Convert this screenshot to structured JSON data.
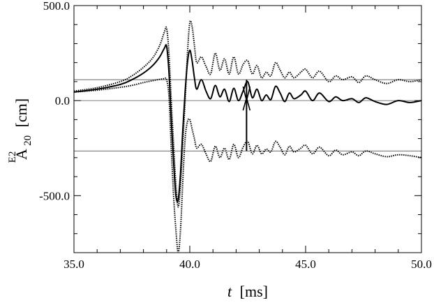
{
  "chart_data": {
    "type": "line",
    "title": "",
    "xlabel": {
      "symbol": "t",
      "unit": "[ms]"
    },
    "ylabel": {
      "base": "A",
      "superscript": "E2",
      "subscript": "20",
      "unit": "[cm]"
    },
    "xlim": [
      35.0,
      50.0
    ],
    "ylim": [
      -800,
      500
    ],
    "x_ticks": [
      {
        "value": 35.0,
        "label": "35.0"
      },
      {
        "value": 40.0,
        "label": "40.0"
      },
      {
        "value": 45.0,
        "label": "45.0"
      },
      {
        "value": 50.0,
        "label": "50.0"
      }
    ],
    "y_ticks": [
      {
        "value": 500,
        "label": "500.0"
      },
      {
        "value": 0,
        "label": "0.0"
      },
      {
        "value": -500,
        "label": "-500.0"
      }
    ],
    "grid": false,
    "reference_lines_y": [
      110,
      0,
      -265
    ],
    "error_bar": {
      "x": 42.45,
      "low": -265,
      "high": 110,
      "center": 0
    },
    "series": [
      {
        "style": "solid",
        "x": [
          35.0,
          36.0,
          37.0,
          37.5,
          38.0,
          38.4,
          38.7,
          38.9,
          39.0,
          39.1,
          39.2,
          39.3,
          39.4,
          39.5,
          39.6,
          39.7,
          39.8,
          39.9,
          40.0,
          40.1,
          40.2,
          40.3,
          40.5,
          40.7,
          40.9,
          41.1,
          41.3,
          41.5,
          41.7,
          41.9,
          42.1,
          42.3,
          42.5,
          42.7,
          42.9,
          43.1,
          43.3,
          43.5,
          43.7,
          43.9,
          44.1,
          44.3,
          44.5,
          44.8,
          45.0,
          45.3,
          45.6,
          46.0,
          46.3,
          46.6,
          47.0,
          47.3,
          47.6,
          48.0,
          48.5,
          49.0,
          49.5,
          50.0
        ],
        "y": [
          45,
          60,
          85,
          110,
          145,
          185,
          230,
          275,
          285,
          150,
          -100,
          -320,
          -500,
          -520,
          -380,
          -150,
          50,
          200,
          265,
          210,
          120,
          60,
          110,
          50,
          10,
          80,
          20,
          60,
          -5,
          65,
          0,
          50,
          100,
          15,
          60,
          0,
          30,
          5,
          75,
          40,
          -5,
          40,
          10,
          30,
          50,
          0,
          40,
          -5,
          20,
          0,
          10,
          -10,
          15,
          -5,
          -20,
          0,
          -10,
          0
        ]
      },
      {
        "style": "dotted",
        "x": [
          35.0,
          36.0,
          37.0,
          37.5,
          38.0,
          38.4,
          38.7,
          38.9,
          39.0,
          39.1,
          39.2,
          39.3,
          39.4,
          39.5,
          39.6,
          39.7,
          39.8,
          39.9,
          40.0,
          40.1,
          40.2,
          40.3,
          40.5,
          40.7,
          40.9,
          41.1,
          41.3,
          41.5,
          41.7,
          41.9,
          42.1,
          42.3,
          42.5,
          42.7,
          42.9,
          43.1,
          43.3,
          43.5,
          43.7,
          43.9,
          44.1,
          44.3,
          44.5,
          44.8,
          45.0,
          45.3,
          45.6,
          46.0,
          46.3,
          46.6,
          47.0,
          47.3,
          47.6,
          48.0,
          48.5,
          49.0,
          49.5,
          50.0
        ],
        "y": [
          50,
          68,
          100,
          130,
          175,
          225,
          290,
          360,
          380,
          250,
          0,
          -230,
          -440,
          -560,
          -440,
          -220,
          0,
          250,
          410,
          390,
          290,
          200,
          230,
          180,
          140,
          250,
          160,
          220,
          140,
          230,
          140,
          190,
          210,
          140,
          185,
          120,
          150,
          130,
          200,
          160,
          120,
          150,
          120,
          150,
          165,
          120,
          155,
          100,
          130,
          110,
          125,
          95,
          130,
          110,
          90,
          110,
          100,
          110
        ]
      },
      {
        "style": "dotted",
        "x": [
          35.0,
          36.0,
          37.0,
          37.5,
          38.0,
          38.4,
          38.7,
          38.9,
          39.0,
          39.1,
          39.2,
          39.3,
          39.4,
          39.5,
          39.6,
          39.7,
          39.8,
          39.9,
          40.0,
          40.1,
          40.2,
          40.3,
          40.5,
          40.7,
          40.9,
          41.1,
          41.3,
          41.5,
          41.7,
          41.9,
          42.1,
          42.3,
          42.5,
          42.7,
          42.9,
          43.1,
          43.3,
          43.5,
          43.7,
          43.9,
          44.1,
          44.3,
          44.5,
          44.8,
          45.0,
          45.3,
          45.6,
          46.0,
          46.3,
          46.6,
          47.0,
          47.3,
          47.6,
          48.0,
          48.5,
          49.0,
          49.5,
          50.0
        ],
        "y": [
          45,
          55,
          70,
          80,
          95,
          105,
          112,
          115,
          110,
          20,
          -250,
          -500,
          -680,
          -800,
          -680,
          -420,
          -200,
          -110,
          -100,
          -150,
          -200,
          -250,
          -230,
          -280,
          -320,
          -240,
          -300,
          -250,
          -310,
          -230,
          -300,
          -245,
          -215,
          -280,
          -235,
          -280,
          -255,
          -270,
          -215,
          -245,
          -285,
          -240,
          -270,
          -250,
          -235,
          -280,
          -245,
          -290,
          -260,
          -285,
          -270,
          -290,
          -265,
          -280,
          -295,
          -285,
          -290,
          -300
        ]
      }
    ]
  }
}
